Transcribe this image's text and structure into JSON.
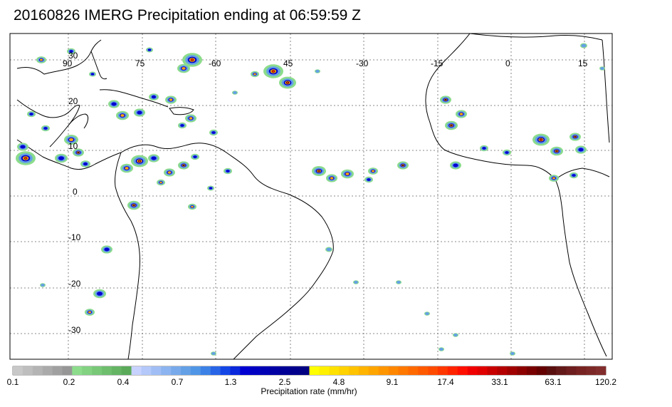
{
  "title": "20160826 IMERG Precipitation ending at 06:59:59 Z",
  "map": {
    "region": "Tropical Atlantic, South America and West Africa",
    "lon_labels": [
      "90",
      "75",
      "-60",
      "45",
      "-30",
      "-15",
      "0",
      "15"
    ],
    "lat_labels": [
      "30",
      "20",
      "10",
      "0",
      "-10",
      "-20",
      "-30"
    ],
    "coast_color": "#000000",
    "grid_style": "dotted"
  },
  "colorbar": {
    "title": "Precipitation rate (mm/hr)",
    "tick_labels": [
      "0.1",
      "0.2",
      "0.4",
      "0.7",
      "1.3",
      "2.5",
      "4.8",
      "9.1",
      "17.4",
      "33.1",
      "63.1",
      "120.2"
    ],
    "colors": [
      "#c8c8c8",
      "#bebebe",
      "#b4b4b4",
      "#aaaaaa",
      "#a0a0a0",
      "#969696",
      "#8cdc8c",
      "#82d282",
      "#78c878",
      "#6ebe6e",
      "#64b464",
      "#5aaa5a",
      "#c8d2ff",
      "#b4c8fa",
      "#a0bef5",
      "#8cb4f0",
      "#78aaeb",
      "#64a0e6",
      "#5096e6",
      "#3c82e6",
      "#2864e6",
      "#1446e6",
      "#0a28dc",
      "#0000d2",
      "#0000c3",
      "#0000b4",
      "#0000a5",
      "#000096",
      "#00008c",
      "#000082",
      "#ffff00",
      "#fff000",
      "#ffe100",
      "#ffd200",
      "#ffc300",
      "#ffb400",
      "#ffa500",
      "#ff9600",
      "#ff8700",
      "#ff7800",
      "#ff6900",
      "#ff5a00",
      "#ff4b00",
      "#ff3700",
      "#ff2300",
      "#ff0f00",
      "#f00000",
      "#e10000",
      "#c80000",
      "#b40000",
      "#a00000",
      "#8c0000",
      "#780000",
      "#640000",
      "#5a0f0f",
      "#641919",
      "#6e1e1e",
      "#782323",
      "#7d2828",
      "#822d2d"
    ]
  }
}
